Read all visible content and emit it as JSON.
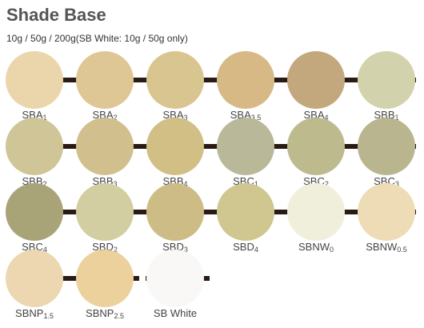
{
  "header": {
    "title": "Shade Base",
    "subtitle": "10g / 50g / 200g(SB White: 10g / 50g only)"
  },
  "swatches": [
    {
      "name": "SBA",
      "sub": "1",
      "color": "#ead6aa"
    },
    {
      "name": "SBA",
      "sub": "2",
      "color": "#dfc795"
    },
    {
      "name": "SBA",
      "sub": "3",
      "color": "#d9c590"
    },
    {
      "name": "SBA",
      "sub": "3.5",
      "color": "#d6b984"
    },
    {
      "name": "SBA",
      "sub": "4",
      "color": "#c2a87c"
    },
    {
      "name": "SBB",
      "sub": "1",
      "color": "#d2d3ad"
    },
    {
      "name": "SBB",
      "sub": "2",
      "color": "#cfc596"
    },
    {
      "name": "SBB",
      "sub": "3",
      "color": "#d1c08d"
    },
    {
      "name": "SBB",
      "sub": "4",
      "color": "#d1bf85"
    },
    {
      "name": "SBC",
      "sub": "1",
      "color": "#b9b99a"
    },
    {
      "name": "SBC",
      "sub": "2",
      "color": "#bdbb8e"
    },
    {
      "name": "SBC",
      "sub": "3",
      "color": "#b9b58f"
    },
    {
      "name": "SBC",
      "sub": "4",
      "color": "#a9a477"
    },
    {
      "name": "SBD",
      "sub": "2",
      "color": "#d2cea1"
    },
    {
      "name": "SBD",
      "sub": "3",
      "color": "#cdbc85"
    },
    {
      "name": "SBD",
      "sub": "4",
      "color": "#cfc78f"
    },
    {
      "name": "SBNW",
      "sub": "0",
      "color": "#efefdc"
    },
    {
      "name": "SBNW",
      "sub": "0.5",
      "color": "#eddcb5"
    },
    {
      "name": "SBNP",
      "sub": "1.5",
      "color": "#ecd7b0"
    },
    {
      "name": "SBNP",
      "sub": "2.5",
      "color": "#ecd19d"
    },
    {
      "name": "SB White",
      "color": "#f9f8f6"
    }
  ]
}
